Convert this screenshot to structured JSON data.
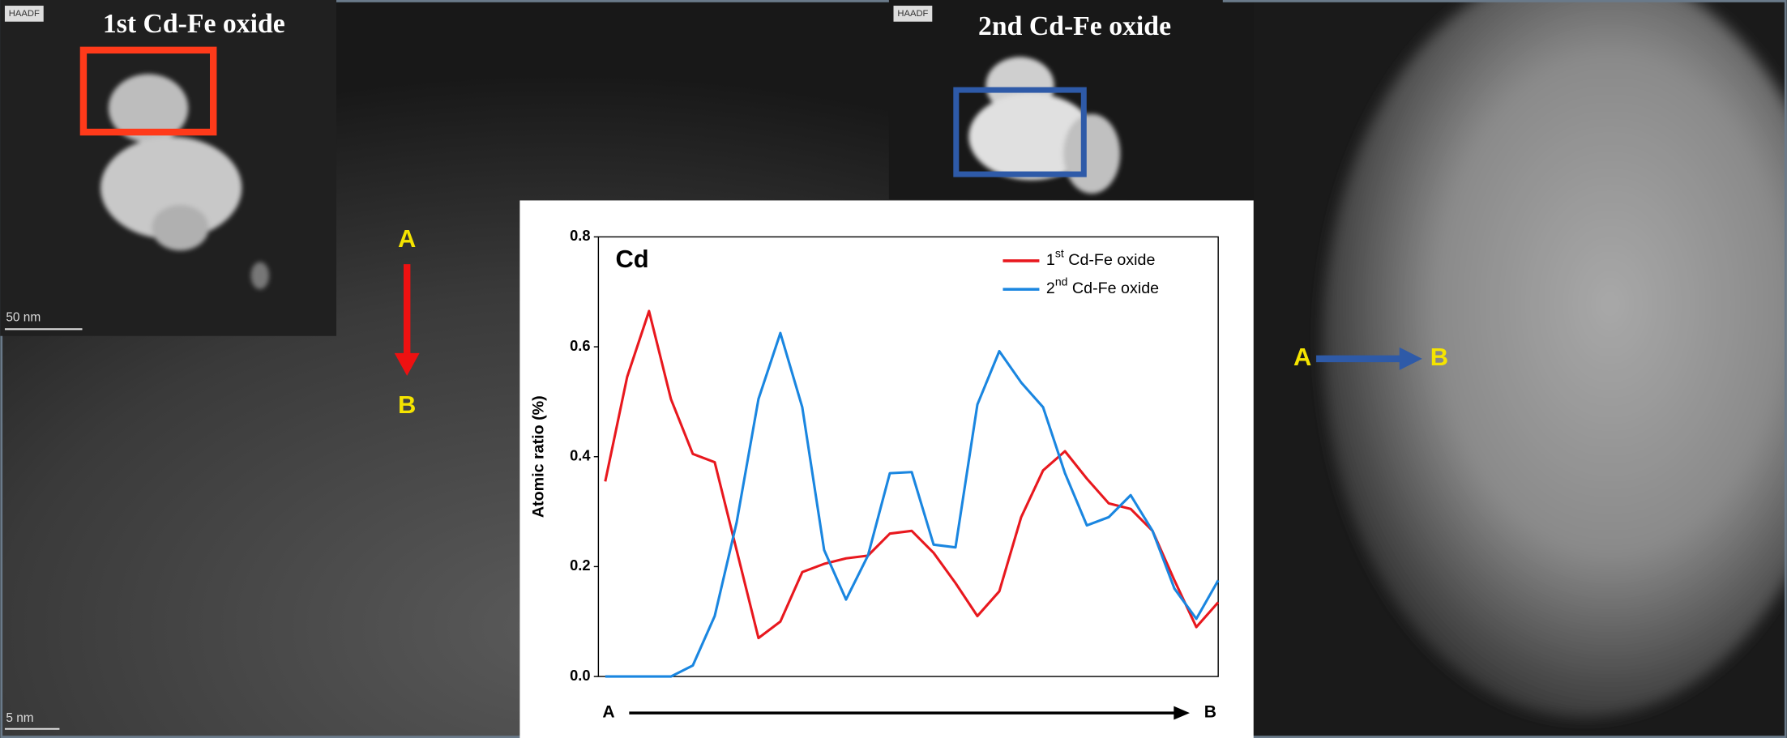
{
  "panels": {
    "left": {
      "title": "1st Cd-Fe oxide",
      "detector": "HAADF",
      "inset_scale": "50 nm",
      "scale": "5 nm",
      "arrow_start": "A",
      "arrow_end": "B"
    },
    "right": {
      "title": "2nd Cd-Fe oxide",
      "detector": "HAADF",
      "arrow_start": "A",
      "arrow_end": "B"
    }
  },
  "chart_data": {
    "type": "line",
    "title": "Cd",
    "ylabel": "Atomic ratio (%)",
    "categories": [
      "A",
      null,
      null,
      null,
      null,
      null,
      null,
      null,
      null,
      null,
      null,
      null,
      null,
      null,
      null,
      null,
      null,
      null,
      null,
      null,
      null,
      null,
      null,
      null,
      null,
      null,
      null,
      null,
      "B"
    ],
    "series": [
      {
        "name": "1st Cd-Fe oxide",
        "color": "#e8181e",
        "values": [
          0.355,
          0.545,
          0.665,
          0.505,
          0.405,
          0.39,
          0.23,
          0.07,
          0.1,
          0.19,
          0.205,
          0.215,
          0.22,
          0.26,
          0.265,
          0.225,
          0.17,
          0.11,
          0.155,
          0.29,
          0.375,
          0.41,
          0.36,
          0.315,
          0.305,
          0.265,
          0.175,
          0.09,
          0.135
        ]
      },
      {
        "name": "2nd Cd-Fe oxide",
        "color": "#1a86e0",
        "values": [
          0,
          0,
          0,
          0,
          0.02,
          0.11,
          0.28,
          0.505,
          0.625,
          0.49,
          0.23,
          0.14,
          0.22,
          0.37,
          0.372,
          0.24,
          0.235,
          0.495,
          0.592,
          0.535,
          0.49,
          0.37,
          0.275,
          0.29,
          0.33,
          0.265,
          0.16,
          0.105,
          0.175
        ]
      }
    ],
    "ylim": [
      0,
      0.8
    ],
    "yticks": [
      {
        "value": 0,
        "label": "0.0"
      },
      0.2,
      0.4,
      0.6,
      0.8
    ],
    "grid": false,
    "legend": "upper right"
  }
}
